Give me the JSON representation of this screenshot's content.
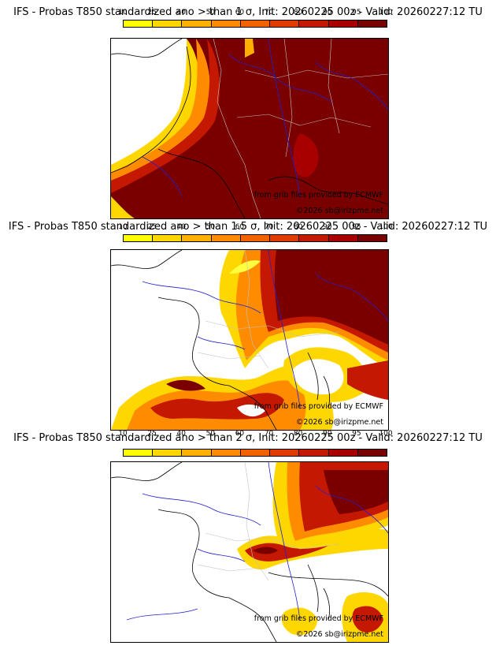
{
  "panels": [
    {
      "title": "IFS - Probas T850  standardized ano > than 1 σ, Init: 20260225 00z - Valid: 20260227:12 TU",
      "threshold": "1 σ",
      "credit_line1": "from grib files provided by ECMWF",
      "credit_line2": "©2026 sb@irizpme.net"
    },
    {
      "title": "IFS - Probas T850  standardized ano > than 1.5 σ, Init: 20260225 00z - Valid: 20260227:12 TU",
      "threshold": "1.5 σ",
      "credit_line1": "from grib files provided by ECMWF",
      "credit_line2": "©2026 sb@irizpme.net"
    },
    {
      "title": "IFS - Probas T850  standardized ano > than 2 σ, Init: 20260225 00z - Valid: 20260227:12 TU",
      "threshold": "2 σ",
      "credit_line1": "from grib files provided by ECMWF",
      "credit_line2": "©2026 sb@irizpme.net"
    }
  ],
  "colorbar": {
    "ticks": [
      "10",
      "25",
      "40",
      "50",
      "60",
      "70",
      "80",
      "90",
      "95",
      "100"
    ],
    "colors": [
      "#ffff00",
      "#ffd700",
      "#ffb000",
      "#ff8c00",
      "#f26200",
      "#e03a00",
      "#c41800",
      "#a80000",
      "#780000"
    ]
  },
  "palette": {
    "ocean_land": "#ffffff",
    "coast": "#000000",
    "rivers": "#2020d0",
    "borders": "#909090",
    "p_low": "#ffff40",
    "p_mid": "#ffa800",
    "p_high": "#d02000",
    "p_max": "#7a0000"
  }
}
